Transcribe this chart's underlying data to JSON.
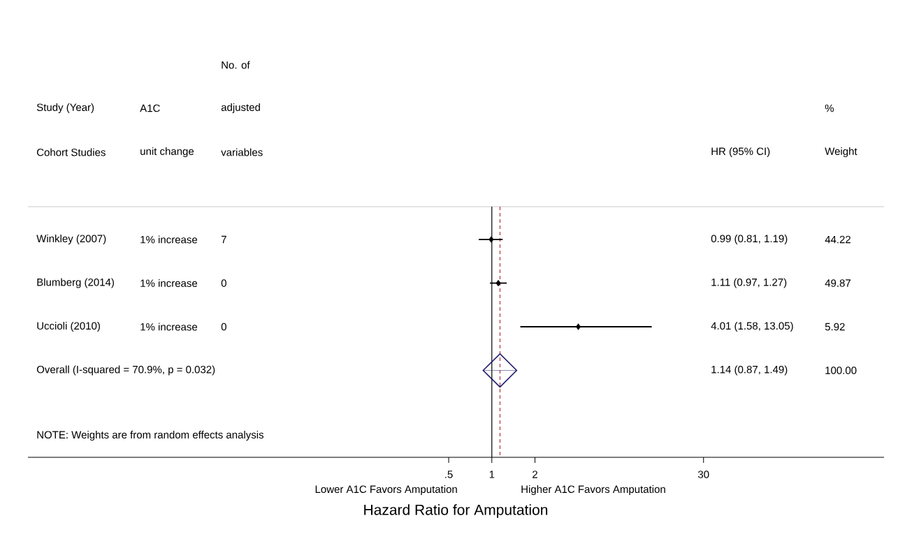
{
  "chart_data": {
    "type": "scatter",
    "orientation": "horizontal",
    "marker": "diamond",
    "categories": [
      "Winkley (2007)",
      "Blumberg (2014)",
      "Uccioli (2010)",
      "Overall  (I-squared = 70.9%, p = 0.032)"
    ],
    "series": [
      {
        "color": "#000000",
        "values": [
          0.99,
          1.11,
          4.01,
          null
        ],
        "errors": [
          [
            0.81,
            1.19
          ],
          [
            0.97,
            1.27
          ],
          [
            1.58,
            13.05
          ],
          null
        ]
      },
      {
        "color": "#1c1c6b",
        "marker": "diamond",
        "values": [
          null,
          null,
          null,
          1.14
        ],
        "errors": [
          null,
          null,
          null,
          [
            0.87,
            1.49
          ]
        ]
      }
    ],
    "log": "x",
    "xlim": [
      0.00058,
      545
    ],
    "xticks": [
      {
        "value": 0.5,
        "label": ".5"
      },
      1,
      2,
      30
    ],
    "xlabel": "Hazard Ratio for Amputation",
    "grid": false,
    "ref_lines": [
      {
        "axis": "x",
        "value": 1,
        "color": "#000000",
        "line_style": "solid"
      },
      {
        "axis": "x",
        "value": 1.14,
        "color": "#b03a3a",
        "line_style": "dashed"
      }
    ],
    "annotations": [
      "No. of",
      "Study (Year)",
      "A1C",
      "adjusted",
      "%",
      "Cohort Studies",
      "unit change",
      "variables",
      "HR (95% CI)",
      "Weight",
      "1% increase",
      "1% increase",
      "1% increase",
      "7",
      "0",
      "0",
      "44.22",
      "49.87",
      "5.92",
      "100.00",
      "NOTE: Weights are from random effects analysis",
      "Lower A1C Favors Amputation",
      "Higher A1C Favors Amputation",
      "0.99 (0.81, 1.19)",
      "1.11 (0.97, 1.27)",
      "4.01 (1.58, 13.05)",
      "1.14 (0.87, 1.49)"
    ]
  }
}
